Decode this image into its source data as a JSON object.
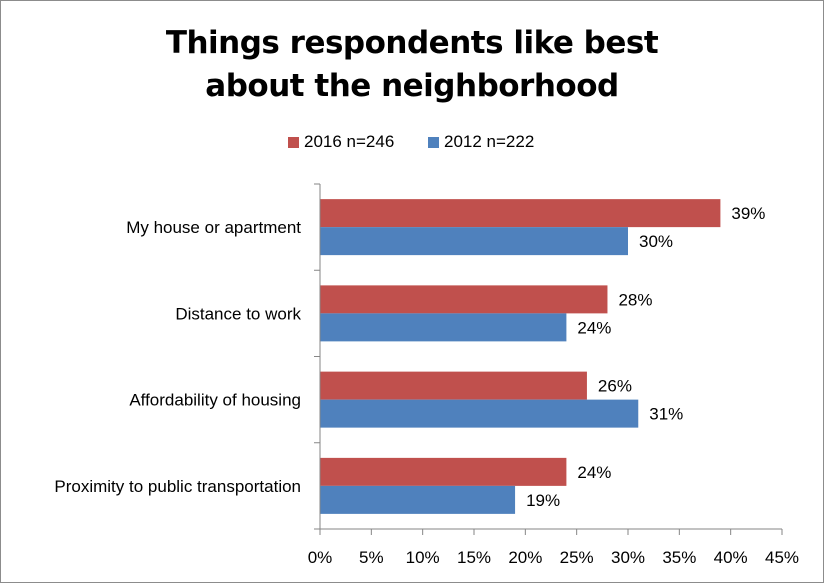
{
  "chart_data": {
    "type": "bar",
    "orientation": "horizontal",
    "title_line1": "Things respondents like best",
    "title_line2": "about the neighborhood",
    "categories": [
      "My house or apartment",
      "Distance to work",
      "Affordability of housing",
      "Proximity to public transportation"
    ],
    "series": [
      {
        "name": "2016 n=246",
        "color": "#c0504d",
        "values": [
          39,
          28,
          26,
          24
        ],
        "labels": [
          "39%",
          "28%",
          "26%",
          "24%"
        ]
      },
      {
        "name": "2012 n=222",
        "color": "#4f81bd",
        "values": [
          30,
          24,
          31,
          19
        ],
        "labels": [
          "30%",
          "24%",
          "31%",
          "19%"
        ]
      }
    ],
    "xlim": [
      0,
      45
    ],
    "xticks": [
      0,
      5,
      10,
      15,
      20,
      25,
      30,
      35,
      40,
      45
    ],
    "xtick_labels": [
      "0%",
      "5%",
      "10%",
      "15%",
      "20%",
      "25%",
      "30%",
      "35%",
      "40%",
      "45%"
    ],
    "legend_position": "top",
    "grid": false
  }
}
